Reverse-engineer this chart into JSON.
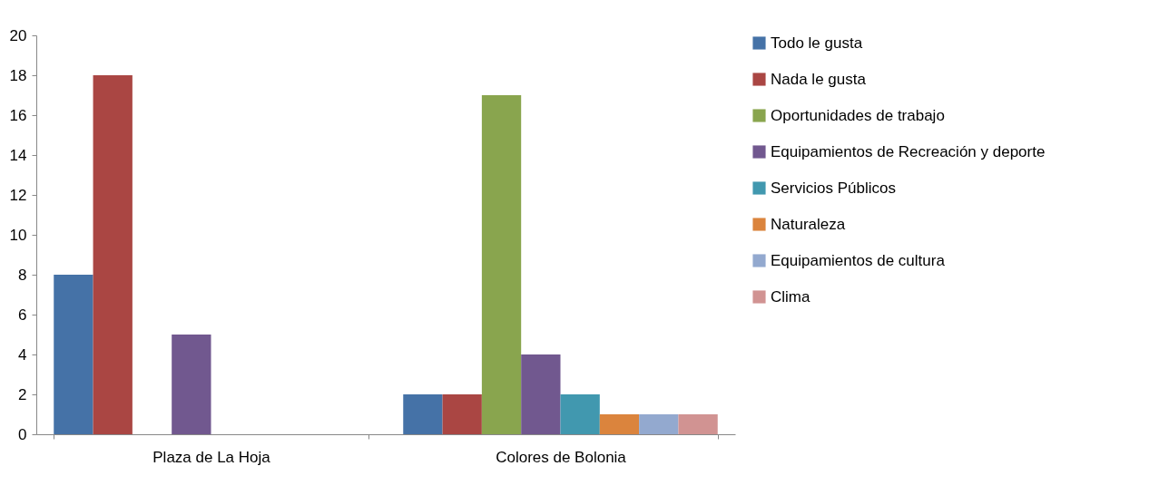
{
  "chart_data": {
    "type": "bar",
    "categories": [
      "Plaza de La Hoja",
      "Colores de Bolonia"
    ],
    "series": [
      {
        "name": "Todo le gusta",
        "color": "#4572a7",
        "values": [
          8,
          2
        ]
      },
      {
        "name": "Nada le gusta",
        "color": "#aa4643",
        "values": [
          18,
          2
        ]
      },
      {
        "name": "Oportunidades de trabajo",
        "color": "#89a54e",
        "values": [
          0,
          17
        ]
      },
      {
        "name": "Equipamientos de Recreación y deporte",
        "color": "#71588f",
        "values": [
          5,
          4
        ]
      },
      {
        "name": "Servicios Públicos",
        "color": "#4198af",
        "values": [
          0,
          2
        ]
      },
      {
        "name": "Naturaleza",
        "color": "#db843d",
        "values": [
          0,
          1
        ]
      },
      {
        "name": "Equipamientos de cultura",
        "color": "#93a9cf",
        "values": [
          0,
          1
        ]
      },
      {
        "name": "Clima",
        "color": "#d19392",
        "values": [
          0,
          1
        ]
      }
    ],
    "ylim": [
      0,
      20
    ],
    "yticks": [
      0,
      2,
      4,
      6,
      8,
      10,
      12,
      14,
      16,
      18,
      20
    ],
    "grid": false,
    "legend": "right"
  }
}
